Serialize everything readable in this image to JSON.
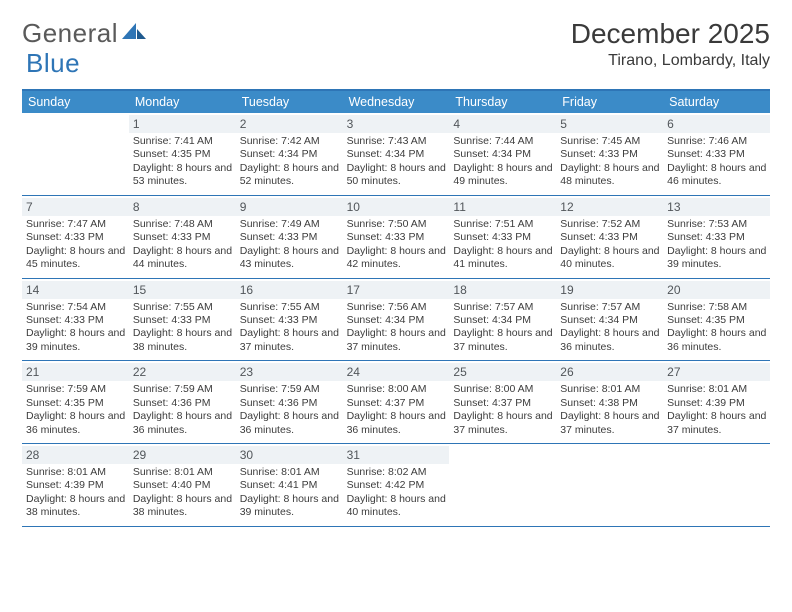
{
  "brand": {
    "part1": "General",
    "part2": "Blue"
  },
  "title": "December 2025",
  "location": "Tirano, Lombardy, Italy",
  "colors": {
    "header_bg": "#3b8bc8",
    "rule": "#2e75b6",
    "daynum_bg": "#eef2f5",
    "text": "#3c3c3c"
  },
  "day_names": [
    "Sunday",
    "Monday",
    "Tuesday",
    "Wednesday",
    "Thursday",
    "Friday",
    "Saturday"
  ],
  "weeks": [
    [
      null,
      {
        "n": "1",
        "sr": "7:41 AM",
        "ss": "4:35 PM",
        "dl": "8 hours and 53 minutes."
      },
      {
        "n": "2",
        "sr": "7:42 AM",
        "ss": "4:34 PM",
        "dl": "8 hours and 52 minutes."
      },
      {
        "n": "3",
        "sr": "7:43 AM",
        "ss": "4:34 PM",
        "dl": "8 hours and 50 minutes."
      },
      {
        "n": "4",
        "sr": "7:44 AM",
        "ss": "4:34 PM",
        "dl": "8 hours and 49 minutes."
      },
      {
        "n": "5",
        "sr": "7:45 AM",
        "ss": "4:33 PM",
        "dl": "8 hours and 48 minutes."
      },
      {
        "n": "6",
        "sr": "7:46 AM",
        "ss": "4:33 PM",
        "dl": "8 hours and 46 minutes."
      }
    ],
    [
      {
        "n": "7",
        "sr": "7:47 AM",
        "ss": "4:33 PM",
        "dl": "8 hours and 45 minutes."
      },
      {
        "n": "8",
        "sr": "7:48 AM",
        "ss": "4:33 PM",
        "dl": "8 hours and 44 minutes."
      },
      {
        "n": "9",
        "sr": "7:49 AM",
        "ss": "4:33 PM",
        "dl": "8 hours and 43 minutes."
      },
      {
        "n": "10",
        "sr": "7:50 AM",
        "ss": "4:33 PM",
        "dl": "8 hours and 42 minutes."
      },
      {
        "n": "11",
        "sr": "7:51 AM",
        "ss": "4:33 PM",
        "dl": "8 hours and 41 minutes."
      },
      {
        "n": "12",
        "sr": "7:52 AM",
        "ss": "4:33 PM",
        "dl": "8 hours and 40 minutes."
      },
      {
        "n": "13",
        "sr": "7:53 AM",
        "ss": "4:33 PM",
        "dl": "8 hours and 39 minutes."
      }
    ],
    [
      {
        "n": "14",
        "sr": "7:54 AM",
        "ss": "4:33 PM",
        "dl": "8 hours and 39 minutes."
      },
      {
        "n": "15",
        "sr": "7:55 AM",
        "ss": "4:33 PM",
        "dl": "8 hours and 38 minutes."
      },
      {
        "n": "16",
        "sr": "7:55 AM",
        "ss": "4:33 PM",
        "dl": "8 hours and 37 minutes."
      },
      {
        "n": "17",
        "sr": "7:56 AM",
        "ss": "4:34 PM",
        "dl": "8 hours and 37 minutes."
      },
      {
        "n": "18",
        "sr": "7:57 AM",
        "ss": "4:34 PM",
        "dl": "8 hours and 37 minutes."
      },
      {
        "n": "19",
        "sr": "7:57 AM",
        "ss": "4:34 PM",
        "dl": "8 hours and 36 minutes."
      },
      {
        "n": "20",
        "sr": "7:58 AM",
        "ss": "4:35 PM",
        "dl": "8 hours and 36 minutes."
      }
    ],
    [
      {
        "n": "21",
        "sr": "7:59 AM",
        "ss": "4:35 PM",
        "dl": "8 hours and 36 minutes."
      },
      {
        "n": "22",
        "sr": "7:59 AM",
        "ss": "4:36 PM",
        "dl": "8 hours and 36 minutes."
      },
      {
        "n": "23",
        "sr": "7:59 AM",
        "ss": "4:36 PM",
        "dl": "8 hours and 36 minutes."
      },
      {
        "n": "24",
        "sr": "8:00 AM",
        "ss": "4:37 PM",
        "dl": "8 hours and 36 minutes."
      },
      {
        "n": "25",
        "sr": "8:00 AM",
        "ss": "4:37 PM",
        "dl": "8 hours and 37 minutes."
      },
      {
        "n": "26",
        "sr": "8:01 AM",
        "ss": "4:38 PM",
        "dl": "8 hours and 37 minutes."
      },
      {
        "n": "27",
        "sr": "8:01 AM",
        "ss": "4:39 PM",
        "dl": "8 hours and 37 minutes."
      }
    ],
    [
      {
        "n": "28",
        "sr": "8:01 AM",
        "ss": "4:39 PM",
        "dl": "8 hours and 38 minutes."
      },
      {
        "n": "29",
        "sr": "8:01 AM",
        "ss": "4:40 PM",
        "dl": "8 hours and 38 minutes."
      },
      {
        "n": "30",
        "sr": "8:01 AM",
        "ss": "4:41 PM",
        "dl": "8 hours and 39 minutes."
      },
      {
        "n": "31",
        "sr": "8:02 AM",
        "ss": "4:42 PM",
        "dl": "8 hours and 40 minutes."
      },
      null,
      null,
      null
    ]
  ],
  "labels": {
    "sunrise": "Sunrise: ",
    "sunset": "Sunset: ",
    "daylight": "Daylight: "
  }
}
